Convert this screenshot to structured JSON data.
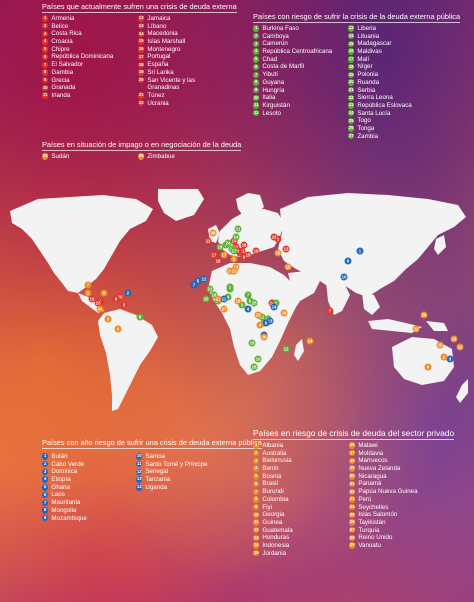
{
  "panel_external_current": {
    "title": "Países que actualmente sufren una crisis de deuda externa",
    "col1": [
      {
        "n": "1",
        "name": "Armenia"
      },
      {
        "n": "2",
        "name": "Belice"
      },
      {
        "n": "3",
        "name": "Costa Rica"
      },
      {
        "n": "4",
        "name": "Croacia"
      },
      {
        "n": "5",
        "name": "Chipre"
      },
      {
        "n": "6",
        "name": "República Dominicana"
      },
      {
        "n": "7",
        "name": "El Salvador"
      },
      {
        "n": "8",
        "name": "Gambia"
      },
      {
        "n": "9",
        "name": "Grecia"
      },
      {
        "n": "10",
        "name": "Granada"
      },
      {
        "n": "11",
        "name": "Irlanda"
      }
    ],
    "col2": [
      {
        "n": "12",
        "name": "Jamaica"
      },
      {
        "n": "13",
        "name": "Líbano"
      },
      {
        "n": "14",
        "name": "Macedonia"
      },
      {
        "n": "15",
        "name": "Islas Marshall"
      },
      {
        "n": "16",
        "name": "Montenegro"
      },
      {
        "n": "17",
        "name": "Portugal"
      },
      {
        "n": "18",
        "name": "España"
      },
      {
        "n": "19",
        "name": "Sri Lanka"
      },
      {
        "n": "20",
        "name": "San Vicente y las Granadinas"
      },
      {
        "n": "21",
        "name": "Túnez"
      },
      {
        "n": "22",
        "name": "Ucrania"
      }
    ]
  },
  "panel_default": {
    "title": "Países en situación de impago o en negociación de la deuda",
    "items": [
      {
        "n": "23",
        "name": "Sudán"
      },
      {
        "n": "24",
        "name": "Zimbabue"
      }
    ]
  },
  "panel_public_risk": {
    "title": "Países con riesgo de sufrir la crisis de la deuda externa pública",
    "col1": [
      {
        "n": "1",
        "name": "Burkina Faso"
      },
      {
        "n": "2",
        "name": "Camboya"
      },
      {
        "n": "3",
        "name": "Camerún"
      },
      {
        "n": "4",
        "name": "República Centroafricana"
      },
      {
        "n": "5",
        "name": "Chad"
      },
      {
        "n": "6",
        "name": "Costa de Marfil"
      },
      {
        "n": "7",
        "name": "Yibutí"
      },
      {
        "n": "8",
        "name": "Guyana"
      },
      {
        "n": "9",
        "name": "Hungría"
      },
      {
        "n": "10",
        "name": "Italia"
      },
      {
        "n": "11",
        "name": "Kirguistán"
      },
      {
        "n": "12",
        "name": "Lesoto"
      }
    ],
    "col2": [
      {
        "n": "13",
        "name": "Liberia"
      },
      {
        "n": "14",
        "name": "Lituania"
      },
      {
        "n": "15",
        "name": "Madagascar"
      },
      {
        "n": "16",
        "name": "Maldivas"
      },
      {
        "n": "17",
        "name": "Malí"
      },
      {
        "n": "18",
        "name": "Níger"
      },
      {
        "n": "19",
        "name": "Polonia"
      },
      {
        "n": "20",
        "name": "Ruanda"
      },
      {
        "n": "21",
        "name": "Serbia"
      },
      {
        "n": "22",
        "name": "Sierra Leona"
      },
      {
        "n": "23",
        "name": "República Eslovaca"
      },
      {
        "n": "24",
        "name": "Santa Lucía"
      },
      {
        "n": "25",
        "name": "Togo"
      },
      {
        "n": "26",
        "name": "Tonga"
      },
      {
        "n": "27",
        "name": "Zambia"
      }
    ]
  },
  "panel_high_risk": {
    "title": "Países con alto riesgo de sufrir una crisis de deuda externa pública",
    "col1": [
      {
        "n": "1",
        "name": "Bután"
      },
      {
        "n": "2",
        "name": "Cabo Verde"
      },
      {
        "n": "3",
        "name": "Dominica"
      },
      {
        "n": "4",
        "name": "Etiopía"
      },
      {
        "n": "5",
        "name": "Ghana"
      },
      {
        "n": "6",
        "name": "Laos"
      },
      {
        "n": "7",
        "name": "Mauritania"
      },
      {
        "n": "8",
        "name": "Mongolia"
      },
      {
        "n": "9",
        "name": "Mozambique"
      }
    ],
    "col2": [
      {
        "n": "10",
        "name": "Samoa"
      },
      {
        "n": "11",
        "name": "Santo Tomé y Príncipe"
      },
      {
        "n": "12",
        "name": "Senegal"
      },
      {
        "n": "13",
        "name": "Tanzania"
      },
      {
        "n": "14",
        "name": "Uganda"
      }
    ]
  },
  "panel_private_risk": {
    "title": "Países en riesgo de crisis de deuda del sector privado",
    "col1": [
      {
        "n": "1",
        "name": "Albania"
      },
      {
        "n": "2",
        "name": "Australia"
      },
      {
        "n": "3",
        "name": "Bielorrusia"
      },
      {
        "n": "4",
        "name": "Benín"
      },
      {
        "n": "5",
        "name": "Bosnia"
      },
      {
        "n": "6",
        "name": "Brasil"
      },
      {
        "n": "7",
        "name": "Burundi"
      },
      {
        "n": "8",
        "name": "Colombia"
      },
      {
        "n": "9",
        "name": "Fiyi"
      },
      {
        "n": "10",
        "name": "Georgia"
      },
      {
        "n": "11",
        "name": "Guinea"
      },
      {
        "n": "12",
        "name": "Guatemala"
      },
      {
        "n": "13",
        "name": "Honduras"
      },
      {
        "n": "14",
        "name": "Indonesia"
      },
      {
        "n": "15",
        "name": "Jordania"
      }
    ],
    "col2": [
      {
        "n": "16",
        "name": "Malawi"
      },
      {
        "n": "17",
        "name": "Moldavia"
      },
      {
        "n": "18",
        "name": "Marruecos"
      },
      {
        "n": "19",
        "name": "Nueva Zelanda"
      },
      {
        "n": "20",
        "name": "Nicaragua"
      },
      {
        "n": "21",
        "name": "Panamá"
      },
      {
        "n": "22",
        "name": "Papúa Nueva Guinea"
      },
      {
        "n": "23",
        "name": "Perú"
      },
      {
        "n": "24",
        "name": "Seychelles"
      },
      {
        "n": "25",
        "name": "Islas Salomón"
      },
      {
        "n": "26",
        "name": "Tayikistán"
      },
      {
        "n": "27",
        "name": "Turquía"
      },
      {
        "n": "28",
        "name": "Reino Unido"
      },
      {
        "n": "29",
        "name": "Vanuatu"
      }
    ]
  },
  "legend_colors": {
    "external_current": "#e2352a",
    "default": "#f08a25",
    "public_risk": "#5cb032",
    "high_risk": "#2566b8",
    "private_risk": "#f08a25"
  },
  "map_markers": [
    {
      "n": "28",
      "color": "#f08a25"
    },
    {
      "n": "11",
      "color": "#e2352a"
    },
    {
      "n": "17",
      "color": "#e2352a"
    },
    {
      "n": "18",
      "color": "#e2352a"
    },
    {
      "n": "9",
      "color": "#e2352a"
    },
    {
      "n": "5",
      "color": "#e2352a"
    },
    {
      "n": "13",
      "color": "#e2352a"
    },
    {
      "n": "1",
      "color": "#e2352a"
    },
    {
      "n": "22",
      "color": "#e2352a"
    },
    {
      "n": "4",
      "color": "#e2352a"
    },
    {
      "n": "14",
      "color": "#e2352a"
    },
    {
      "n": "16",
      "color": "#e2352a"
    },
    {
      "n": "21",
      "color": "#e2352a"
    },
    {
      "n": "19",
      "color": "#e2352a"
    },
    {
      "n": "15",
      "color": "#e2352a"
    },
    {
      "n": "12",
      "color": "#e2352a"
    },
    {
      "n": "6",
      "color": "#e2352a"
    },
    {
      "n": "7",
      "color": "#e2352a"
    },
    {
      "n": "3",
      "color": "#e2352a"
    },
    {
      "n": "2",
      "color": "#e2352a"
    },
    {
      "n": "10",
      "color": "#e2352a"
    },
    {
      "n": "20",
      "color": "#e2352a"
    },
    {
      "n": "8",
      "color": "#e2352a"
    },
    {
      "n": "23",
      "color": "#e2352a"
    },
    {
      "n": "24",
      "color": "#e2352a"
    },
    {
      "n": "10",
      "color": "#5cb032"
    },
    {
      "n": "9",
      "color": "#5cb032"
    },
    {
      "n": "19",
      "color": "#5cb032"
    },
    {
      "n": "14",
      "color": "#5cb032"
    },
    {
      "n": "21",
      "color": "#5cb032"
    },
    {
      "n": "23",
      "color": "#5cb032"
    },
    {
      "n": "11",
      "color": "#5cb032"
    },
    {
      "n": "2",
      "color": "#5cb032"
    },
    {
      "n": "16",
      "color": "#5cb032"
    },
    {
      "n": "8",
      "color": "#5cb032"
    },
    {
      "n": "24",
      "color": "#5cb032"
    },
    {
      "n": "17",
      "color": "#5cb032"
    },
    {
      "n": "18",
      "color": "#5cb032"
    },
    {
      "n": "5",
      "color": "#5cb032"
    },
    {
      "n": "1",
      "color": "#5cb032"
    },
    {
      "n": "22",
      "color": "#5cb032"
    },
    {
      "n": "13",
      "color": "#5cb032"
    },
    {
      "n": "6",
      "color": "#5cb032"
    },
    {
      "n": "25",
      "color": "#5cb032"
    },
    {
      "n": "3",
      "color": "#5cb032"
    },
    {
      "n": "4",
      "color": "#5cb032"
    },
    {
      "n": "7",
      "color": "#5cb032"
    },
    {
      "n": "20",
      "color": "#5cb032"
    },
    {
      "n": "27",
      "color": "#5cb032"
    },
    {
      "n": "15",
      "color": "#5cb032"
    },
    {
      "n": "12",
      "color": "#5cb032"
    },
    {
      "n": "26",
      "color": "#5cb032"
    },
    {
      "n": "3",
      "color": "#2566b8"
    },
    {
      "n": "2",
      "color": "#2566b8"
    },
    {
      "n": "7",
      "color": "#2566b8"
    },
    {
      "n": "12",
      "color": "#2566b8"
    },
    {
      "n": "5",
      "color": "#2566b8"
    },
    {
      "n": "11",
      "color": "#2566b8"
    },
    {
      "n": "4",
      "color": "#2566b8"
    },
    {
      "n": "14",
      "color": "#2566b8"
    },
    {
      "n": "13",
      "color": "#2566b8"
    },
    {
      "n": "9",
      "color": "#2566b8"
    },
    {
      "n": "8",
      "color": "#2566b8"
    },
    {
      "n": "1",
      "color": "#2566b8"
    },
    {
      "n": "6",
      "color": "#2566b8"
    },
    {
      "n": "10",
      "color": "#2566b8"
    },
    {
      "n": "12",
      "color": "#f08a25"
    },
    {
      "n": "13",
      "color": "#f08a25"
    },
    {
      "n": "20",
      "color": "#f08a25"
    },
    {
      "n": "21",
      "color": "#f08a25"
    },
    {
      "n": "8",
      "color": "#f08a25"
    },
    {
      "n": "23",
      "color": "#f08a25"
    },
    {
      "n": "6",
      "color": "#f08a25"
    },
    {
      "n": "3",
      "color": "#f08a25"
    },
    {
      "n": "17",
      "color": "#f08a25"
    },
    {
      "n": "1",
      "color": "#f08a25"
    },
    {
      "n": "5",
      "color": "#f08a25"
    },
    {
      "n": "27",
      "color": "#f08a25"
    },
    {
      "n": "10",
      "color": "#f08a25"
    },
    {
      "n": "15",
      "color": "#f08a25"
    },
    {
      "n": "26",
      "color": "#f08a25"
    },
    {
      "n": "18",
      "color": "#f08a25"
    },
    {
      "n": "11",
      "color": "#f08a25"
    },
    {
      "n": "4",
      "color": "#f08a25"
    },
    {
      "n": "7",
      "color": "#f08a25"
    },
    {
      "n": "16",
      "color": "#f08a25"
    },
    {
      "n": "24",
      "color": "#f08a25"
    },
    {
      "n": "14",
      "color": "#f08a25"
    },
    {
      "n": "22",
      "color": "#f08a25"
    },
    {
      "n": "25",
      "color": "#f08a25"
    },
    {
      "n": "29",
      "color": "#f08a25"
    },
    {
      "n": "9",
      "color": "#f08a25"
    },
    {
      "n": "2",
      "color": "#f08a25"
    },
    {
      "n": "19",
      "color": "#f08a25"
    }
  ]
}
